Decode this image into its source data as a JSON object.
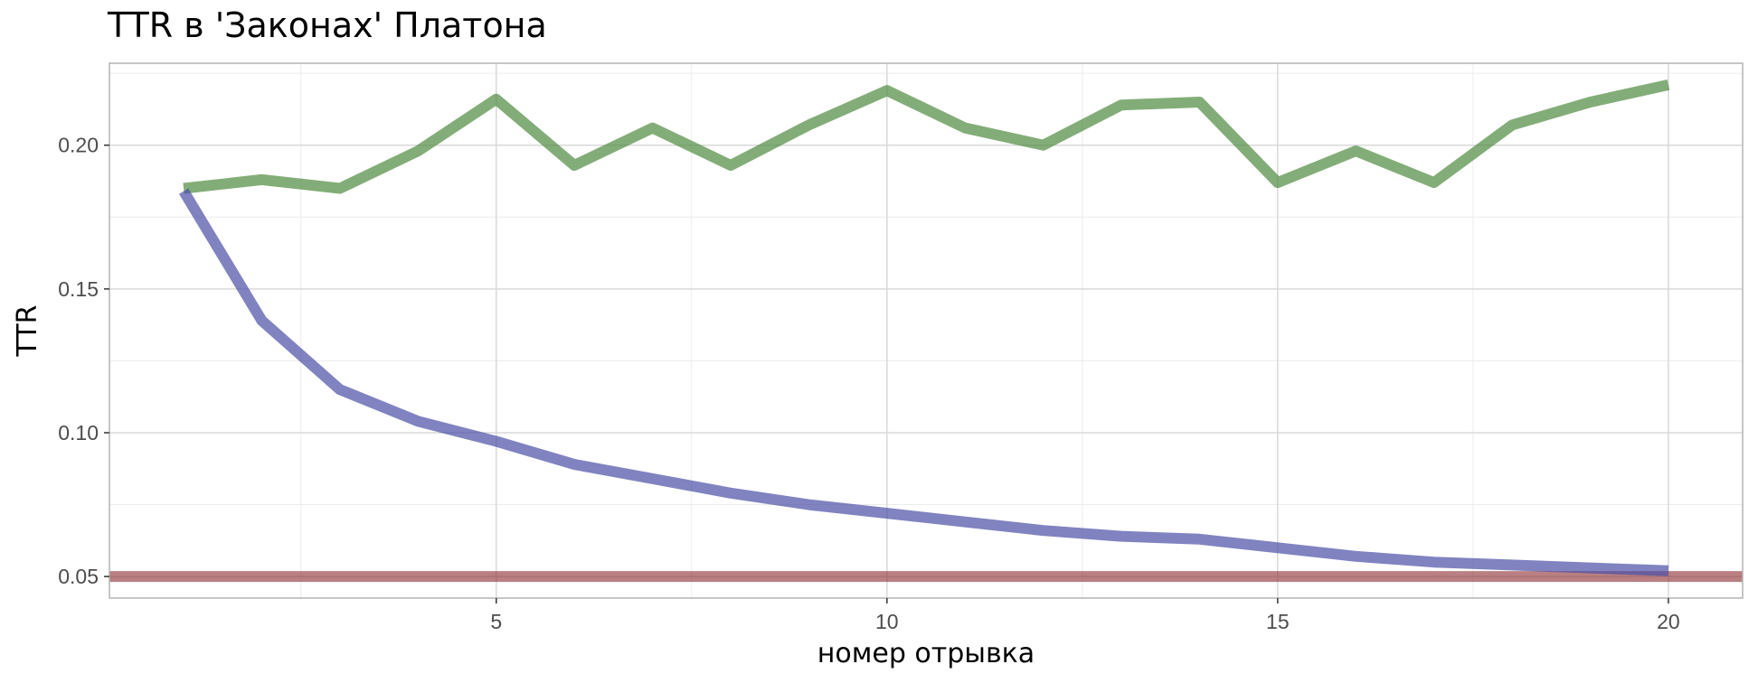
{
  "chart_data": {
    "type": "line",
    "title": "TTR в 'Законах' Платона",
    "xlabel": "номер отрывка",
    "ylabel": "TTR",
    "x": [
      1,
      2,
      3,
      4,
      5,
      6,
      7,
      8,
      9,
      10,
      11,
      12,
      13,
      14,
      15,
      16,
      17,
      18,
      19,
      20
    ],
    "xlim": [
      0.05,
      20.95
    ],
    "ylim": [
      0.0425,
      0.2285
    ],
    "x_ticks": [
      5,
      10,
      15,
      20
    ],
    "x_tick_labels": [
      "5",
      "10",
      "15",
      "20"
    ],
    "y_ticks": [
      0.05,
      0.1,
      0.15,
      0.2
    ],
    "y_tick_labels": [
      "0.05",
      "0.10",
      "0.15",
      "0.20"
    ],
    "grid": true,
    "series": [
      {
        "color": "#4f8a3f",
        "values": [
          0.185,
          0.188,
          0.185,
          0.198,
          0.216,
          0.193,
          0.206,
          0.193,
          0.207,
          0.219,
          0.206,
          0.2,
          0.214,
          0.215,
          0.187,
          0.198,
          0.187,
          0.207,
          0.215,
          0.221
        ]
      },
      {
        "color": "#4a4fa5",
        "values": [
          0.184,
          0.139,
          0.115,
          0.104,
          0.097,
          0.089,
          0.084,
          0.079,
          0.075,
          0.072,
          0.069,
          0.066,
          0.064,
          0.063,
          0.06,
          0.057,
          0.055,
          0.054,
          0.053,
          0.052
        ]
      }
    ],
    "hline": {
      "y": 0.05,
      "color": "#8b2a2f"
    }
  }
}
